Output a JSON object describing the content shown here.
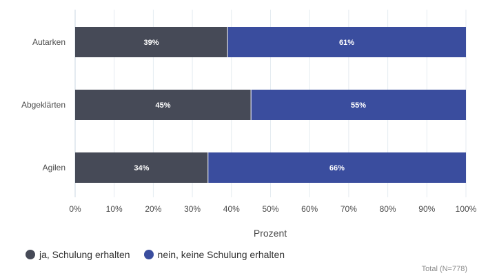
{
  "chart_data": {
    "type": "bar",
    "orientation": "horizontal",
    "stacked": true,
    "categories": [
      "Autarken",
      "Abgeklärten",
      "Agilen"
    ],
    "series": [
      {
        "name": "ja, Schulung erhalten",
        "values": [
          39,
          45,
          34
        ],
        "color": "#464a57"
      },
      {
        "name": "nein, keine Schulung erhalten",
        "values": [
          61,
          55,
          66
        ],
        "color": "#3a4d9e"
      }
    ],
    "value_suffix": "%",
    "xlabel": "Prozent",
    "xlim": [
      0,
      100
    ],
    "xticks": [
      "0%",
      "10%",
      "20%",
      "30%",
      "40%",
      "50%",
      "60%",
      "70%",
      "80%",
      "90%",
      "100%"
    ],
    "grid": true,
    "legend_position": "bottom-left"
  },
  "note": "Total (N=778)"
}
